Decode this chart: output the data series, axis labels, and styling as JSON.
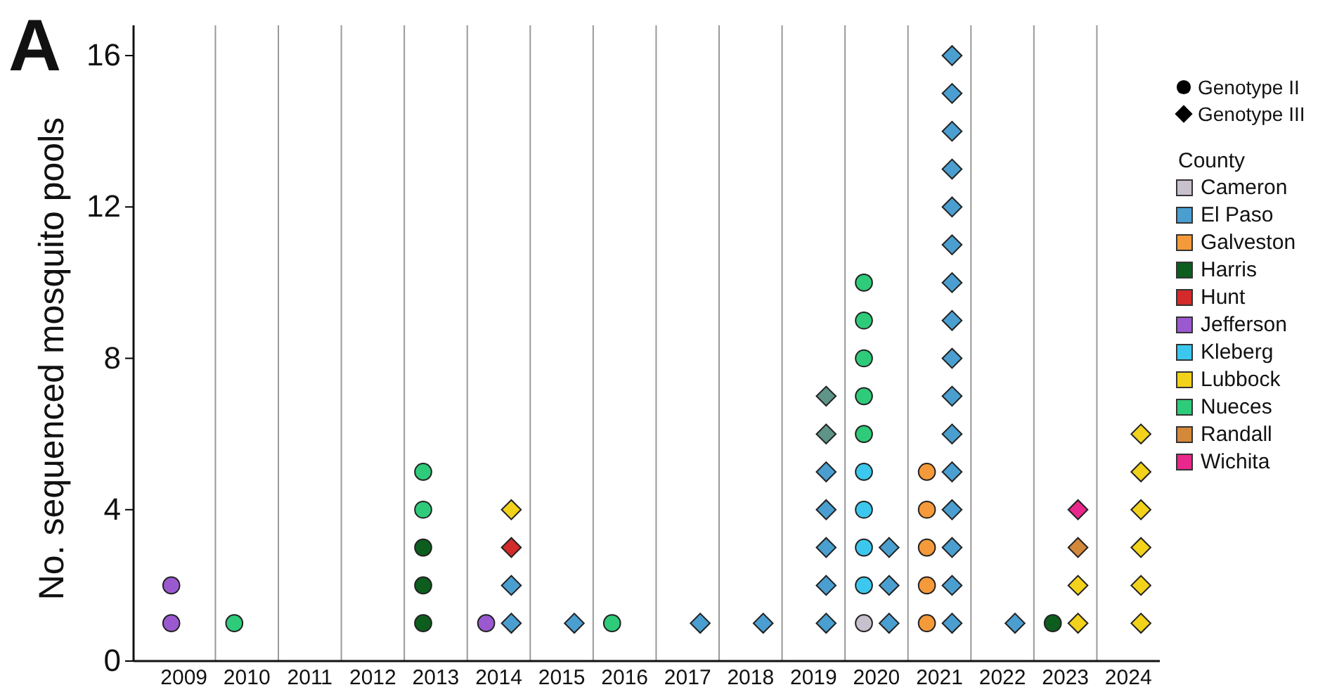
{
  "chart_data": {
    "type": "scatter",
    "ylabel": "No. sequenced mosquito pools",
    "legend_title": "County",
    "legend": "top right",
    "grid": "x",
    "annotations": [
      "A",
      "Genotype II",
      "Genotype III"
    ],
    "xlim": [
      2008.2,
      2024.5
    ],
    "ylim": [
      0,
      16.8
    ],
    "yticks": [
      0,
      4,
      8,
      12,
      16
    ],
    "xticks": [
      2009,
      2010,
      2011,
      2012,
      2013,
      2014,
      2015,
      2016,
      2017,
      2018,
      2019,
      2020,
      2021,
      2022,
      2023,
      2024
    ],
    "series": [
      {
        "name": "Cameron",
        "color": "#c8c0cc",
        "marker": "circle",
        "x": [
          2019.8
        ],
        "values": [
          1
        ]
      },
      {
        "name": "El Paso",
        "color": "#4a9fd0",
        "marker": "diamond",
        "x": [
          2014.2,
          2014.2,
          2015.2,
          2017.2,
          2018.2,
          2019.2,
          2019.2,
          2019.2,
          2019.2,
          2019.2,
          2020.2,
          2020.2,
          2020.2,
          2021.2,
          2021.2,
          2021.2,
          2021.2,
          2021.2,
          2021.2,
          2021.2,
          2021.2,
          2021.2,
          2021.2,
          2021.2,
          2021.2,
          2021.2,
          2021.2,
          2021.2,
          2021.2,
          2022.2
        ],
        "values": [
          1,
          2,
          1,
          1,
          1,
          1,
          2,
          3,
          4,
          5,
          1,
          2,
          3,
          1,
          2,
          3,
          4,
          5,
          6,
          7,
          8,
          9,
          10,
          11,
          12,
          13,
          14,
          15,
          16,
          1
        ]
      },
      {
        "name": "Galveston",
        "color": "#f59a3a",
        "marker": "circle",
        "x": [
          2020.8,
          2020.8,
          2020.8,
          2020.8,
          2020.8
        ],
        "values": [
          1,
          2,
          3,
          4,
          5
        ]
      },
      {
        "name": "Harris",
        "color": "#0d5e1e",
        "marker": "circle",
        "x": [
          2012.8,
          2012.8,
          2012.8,
          2022.8
        ],
        "values": [
          1,
          2,
          3,
          1
        ]
      },
      {
        "name": "Hunt",
        "color": "#d32a2a",
        "marker": "diamond",
        "x": [
          2014.2
        ],
        "values": [
          3
        ]
      },
      {
        "name": "Jefferson",
        "color": "#9b59d0",
        "marker": "circle",
        "x": [
          2008.8,
          2008.8,
          2013.8
        ],
        "values": [
          1,
          2,
          1
        ]
      },
      {
        "name": "Kleberg",
        "color": "#3cc8ee",
        "marker": "circle",
        "x": [
          2019.8,
          2019.8,
          2019.8,
          2019.8
        ],
        "values": [
          2,
          3,
          4,
          5
        ]
      },
      {
        "name": "Lubbock",
        "color": "#f2d21b",
        "marker": "diamond",
        "x": [
          2014.2,
          2023.2,
          2023.2,
          2024.2,
          2024.2,
          2024.2,
          2024.2,
          2024.2,
          2024.2
        ],
        "values": [
          4,
          1,
          2,
          1,
          2,
          3,
          4,
          5,
          6
        ]
      },
      {
        "name": "Nueces",
        "color": "#2ecc7a",
        "marker": "circle",
        "x": [
          2009.8,
          2012.8,
          2012.8,
          2015.8,
          2019.8,
          2019.8,
          2019.8,
          2019.8,
          2019.8
        ],
        "values": [
          1,
          4,
          5,
          1,
          6,
          7,
          8,
          9,
          10
        ]
      },
      {
        "name": "Randall",
        "color": "#d4883a",
        "marker": "diamond",
        "x": [
          2023.2
        ],
        "values": [
          3
        ]
      },
      {
        "name": "Wichita",
        "color": "#e8288a",
        "marker": "diamond",
        "x": [
          2023.2
        ],
        "values": [
          4
        ]
      },
      {
        "color": "#5f9488",
        "marker": "diamond",
        "x": [
          2019.2,
          2019.2
        ],
        "values": [
          6,
          7
        ]
      }
    ]
  }
}
